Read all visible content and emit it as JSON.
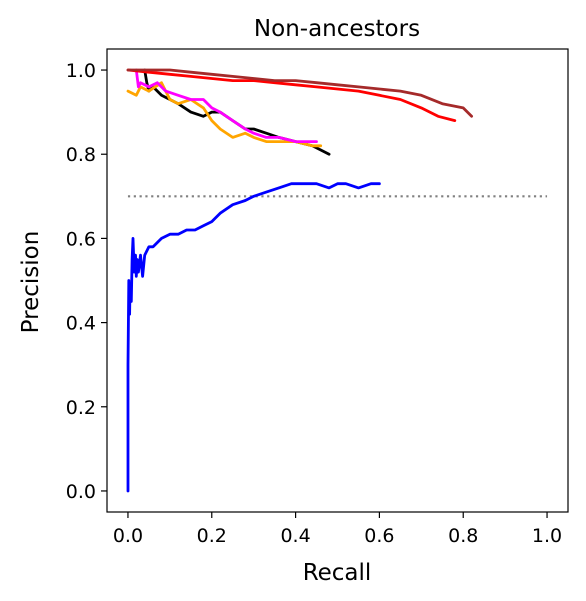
{
  "chart_data": {
    "type": "line",
    "title": "Non-ancestors",
    "xlabel": "Recall",
    "ylabel": "Precision",
    "xlim": [
      -0.05,
      1.05
    ],
    "ylim": [
      -0.05,
      1.05
    ],
    "xticks": [
      0.0,
      0.2,
      0.4,
      0.6,
      0.8,
      1.0
    ],
    "yticks": [
      0.0,
      0.2,
      0.4,
      0.6,
      0.8,
      1.0
    ],
    "xtick_labels": [
      "0.0",
      "0.2",
      "0.4",
      "0.6",
      "0.8",
      "1.0"
    ],
    "ytick_labels": [
      "0.0",
      "0.2",
      "0.4",
      "0.6",
      "0.8",
      "1.0"
    ],
    "grid": false,
    "legend": "none",
    "baseline": {
      "y": 0.7,
      "x": [
        0.0,
        1.0
      ],
      "color": "#808080",
      "style": "dotted"
    },
    "series": [
      {
        "color": "#0000ff",
        "x": [
          0.0,
          0.0,
          0.002,
          0.004,
          0.005,
          0.008,
          0.01,
          0.012,
          0.015,
          0.018,
          0.02,
          0.022,
          0.025,
          0.03,
          0.035,
          0.04,
          0.05,
          0.06,
          0.08,
          0.1,
          0.12,
          0.14,
          0.16,
          0.18,
          0.2,
          0.22,
          0.25,
          0.28,
          0.3,
          0.33,
          0.36,
          0.39,
          0.42,
          0.45,
          0.48,
          0.5,
          0.52,
          0.55,
          0.58,
          0.6
        ],
        "y": [
          0.0,
          0.3,
          0.5,
          0.42,
          0.49,
          0.45,
          0.55,
          0.6,
          0.52,
          0.56,
          0.51,
          0.55,
          0.52,
          0.56,
          0.51,
          0.56,
          0.58,
          0.58,
          0.6,
          0.61,
          0.61,
          0.62,
          0.62,
          0.63,
          0.64,
          0.66,
          0.68,
          0.69,
          0.7,
          0.71,
          0.72,
          0.73,
          0.73,
          0.73,
          0.72,
          0.73,
          0.73,
          0.72,
          0.73,
          0.73
        ]
      },
      {
        "color": "#000000",
        "x": [
          0.04,
          0.045,
          0.05,
          0.06,
          0.08,
          0.1,
          0.12,
          0.15,
          0.18,
          0.2,
          0.22,
          0.25,
          0.28,
          0.3,
          0.33,
          0.36,
          0.4,
          0.44,
          0.48
        ],
        "y": [
          1.0,
          0.97,
          0.95,
          0.96,
          0.94,
          0.93,
          0.92,
          0.9,
          0.89,
          0.9,
          0.9,
          0.88,
          0.86,
          0.86,
          0.85,
          0.84,
          0.83,
          0.82,
          0.8
        ]
      },
      {
        "color": "#ffa500",
        "x": [
          0.0,
          0.02,
          0.03,
          0.05,
          0.08,
          0.1,
          0.12,
          0.15,
          0.18,
          0.2,
          0.22,
          0.25,
          0.28,
          0.3,
          0.33,
          0.36,
          0.4,
          0.44,
          0.46
        ],
        "y": [
          0.95,
          0.94,
          0.96,
          0.95,
          0.97,
          0.93,
          0.92,
          0.93,
          0.91,
          0.88,
          0.86,
          0.84,
          0.85,
          0.84,
          0.83,
          0.83,
          0.83,
          0.82,
          0.82
        ]
      },
      {
        "color": "#ff00ff",
        "x": [
          0.02,
          0.025,
          0.03,
          0.05,
          0.07,
          0.09,
          0.12,
          0.15,
          0.18,
          0.2,
          0.22,
          0.25,
          0.28,
          0.3,
          0.33,
          0.36,
          0.4,
          0.43,
          0.45
        ],
        "y": [
          1.0,
          0.96,
          0.97,
          0.96,
          0.97,
          0.95,
          0.94,
          0.93,
          0.93,
          0.91,
          0.9,
          0.88,
          0.86,
          0.85,
          0.84,
          0.84,
          0.83,
          0.83,
          0.83
        ]
      },
      {
        "color": "#ff0000",
        "x": [
          0.0,
          0.05,
          0.1,
          0.15,
          0.2,
          0.25,
          0.3,
          0.35,
          0.4,
          0.45,
          0.5,
          0.55,
          0.6,
          0.65,
          0.7,
          0.74,
          0.78
        ],
        "y": [
          1.0,
          0.995,
          0.99,
          0.985,
          0.98,
          0.975,
          0.975,
          0.97,
          0.965,
          0.96,
          0.955,
          0.95,
          0.94,
          0.93,
          0.91,
          0.89,
          0.88
        ]
      },
      {
        "color": "#a52a2a",
        "x": [
          0.0,
          0.05,
          0.1,
          0.15,
          0.2,
          0.25,
          0.3,
          0.35,
          0.4,
          0.45,
          0.5,
          0.55,
          0.6,
          0.65,
          0.7,
          0.75,
          0.8,
          0.82
        ],
        "y": [
          1.0,
          1.0,
          1.0,
          0.995,
          0.99,
          0.985,
          0.98,
          0.975,
          0.975,
          0.97,
          0.965,
          0.96,
          0.955,
          0.95,
          0.94,
          0.92,
          0.91,
          0.89
        ]
      }
    ]
  }
}
